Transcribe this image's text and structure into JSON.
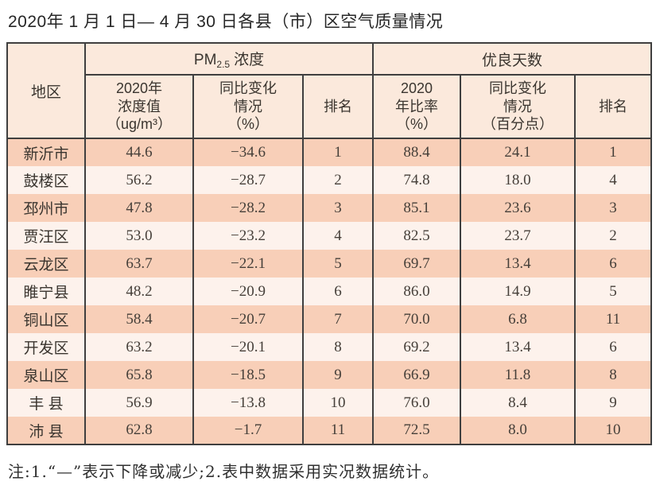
{
  "title": "2020年 1 月 1 日— 4 月 30 日各县（市）区空气质量情况",
  "colors": {
    "border": "#3f3f3f",
    "header_bg": "#fbe9dc",
    "row_odd_bg": "#f8cfb8",
    "row_even_bg": "#fdf2ec"
  },
  "table": {
    "header": {
      "region": "地区",
      "pm_group": {
        "prefix": "PM",
        "sub": "2.5",
        "suffix": "浓度"
      },
      "days_group": "优良天数",
      "sub": {
        "pm_value": "2020年\n浓度值\n（ug/m³）",
        "pm_change": "同比变化\n情况\n（%）",
        "pm_rank": "排名",
        "days_rate": "2020\n年比率\n（%）",
        "days_change": "同比变化\n情况\n（百分点）",
        "days_rank": "排名"
      }
    },
    "rows": [
      {
        "region": "新沂市",
        "pm_value": "44.6",
        "pm_change": "−34.6",
        "pm_rank": "1",
        "days_rate": "88.4",
        "days_change": "24.1",
        "days_rank": "1"
      },
      {
        "region": "鼓楼区",
        "pm_value": "56.2",
        "pm_change": "−28.7",
        "pm_rank": "2",
        "days_rate": "74.8",
        "days_change": "18.0",
        "days_rank": "4"
      },
      {
        "region": "邳州市",
        "pm_value": "47.8",
        "pm_change": "−28.2",
        "pm_rank": "3",
        "days_rate": "85.1",
        "days_change": "23.6",
        "days_rank": "3"
      },
      {
        "region": "贾汪区",
        "pm_value": "53.0",
        "pm_change": "−23.2",
        "pm_rank": "4",
        "days_rate": "82.5",
        "days_change": "23.7",
        "days_rank": "2"
      },
      {
        "region": "云龙区",
        "pm_value": "63.7",
        "pm_change": "−22.1",
        "pm_rank": "5",
        "days_rate": "69.7",
        "days_change": "13.4",
        "days_rank": "6"
      },
      {
        "region": "睢宁县",
        "pm_value": "48.2",
        "pm_change": "−20.9",
        "pm_rank": "6",
        "days_rate": "86.0",
        "days_change": "14.9",
        "days_rank": "5"
      },
      {
        "region": "铜山区",
        "pm_value": "58.4",
        "pm_change": "−20.7",
        "pm_rank": "7",
        "days_rate": "70.0",
        "days_change": "6.8",
        "days_rank": "11"
      },
      {
        "region": "开发区",
        "pm_value": "63.2",
        "pm_change": "−20.1",
        "pm_rank": "8",
        "days_rate": "69.2",
        "days_change": "13.4",
        "days_rank": "6"
      },
      {
        "region": "泉山区",
        "pm_value": "65.8",
        "pm_change": "−18.5",
        "pm_rank": "9",
        "days_rate": "66.9",
        "days_change": "11.8",
        "days_rank": "8"
      },
      {
        "region": "丰 县",
        "pm_value": "56.9",
        "pm_change": "−13.8",
        "pm_rank": "10",
        "days_rate": "76.0",
        "days_change": "8.4",
        "days_rank": "9"
      },
      {
        "region": "沛 县",
        "pm_value": "62.8",
        "pm_change": "−1.7",
        "pm_rank": "11",
        "days_rate": "72.5",
        "days_change": "8.0",
        "days_rank": "10"
      }
    ]
  },
  "footnote": "注:1.“—”表示下降或减少;2.表中数据采用实况数据统计。"
}
